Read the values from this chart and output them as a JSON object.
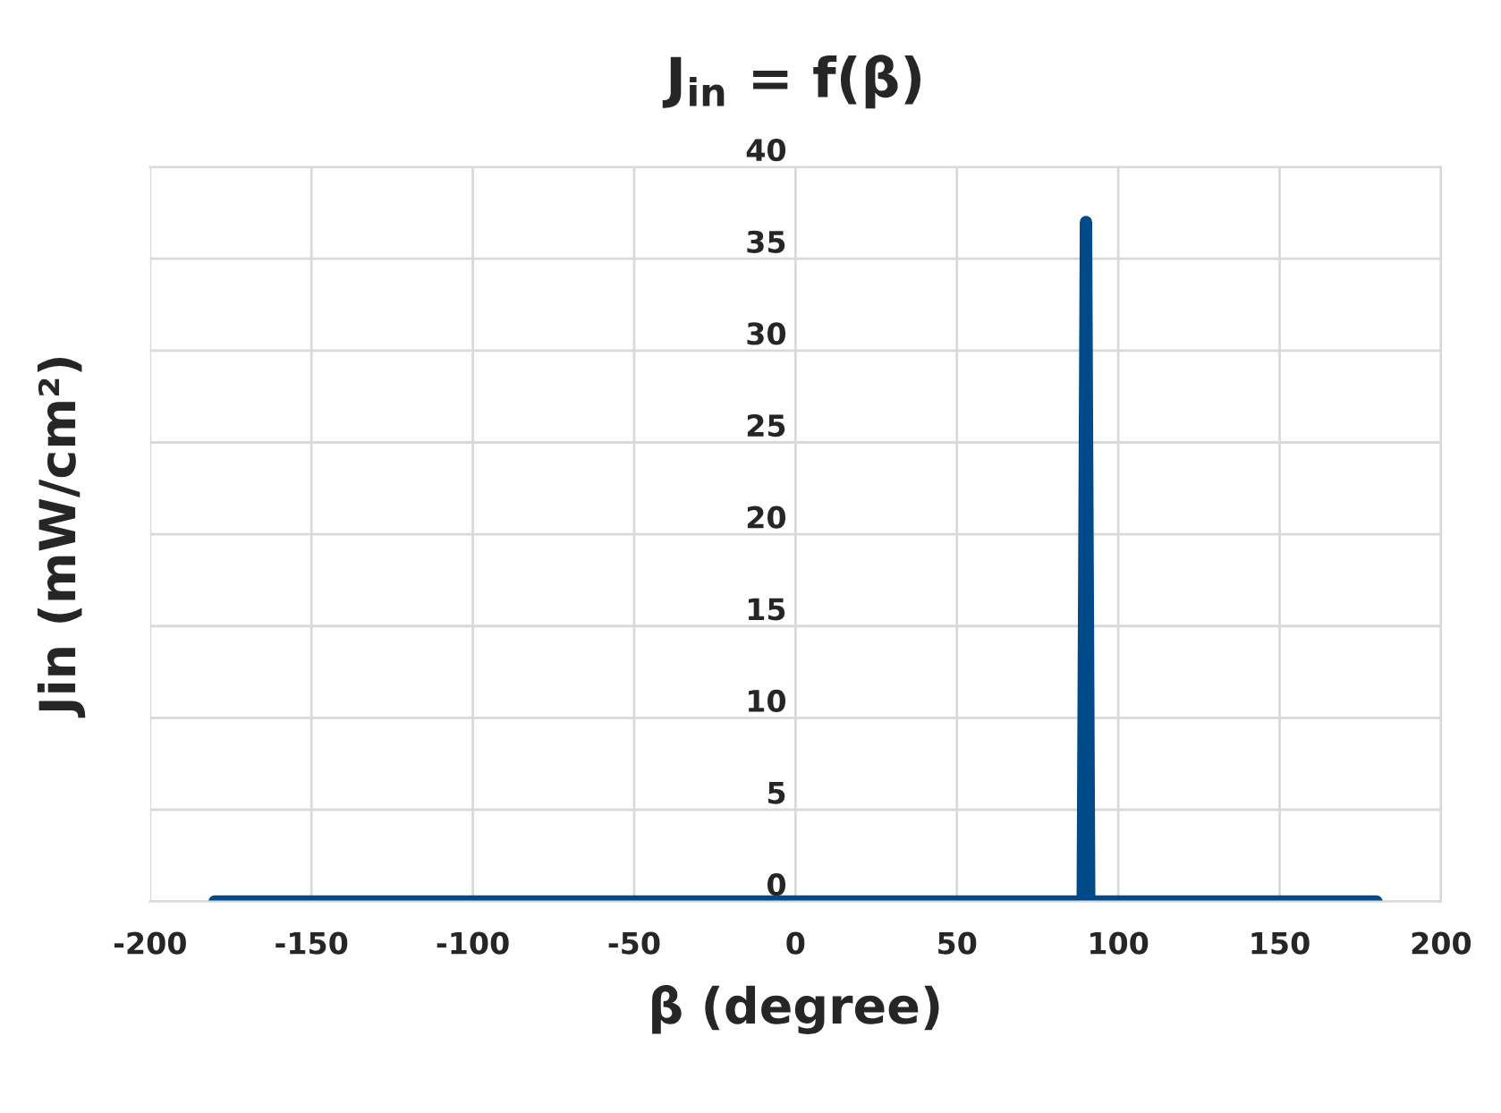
{
  "chart_data": {
    "type": "line",
    "title": "J$_{in}$ = f(β)",
    "xlabel": "β (degree)",
    "ylabel": "Jin (mW/cm²)",
    "x": [
      -180,
      89,
      90,
      91,
      180
    ],
    "series": [
      {
        "color": "#004a8a",
        "values": [
          0,
          0,
          37,
          0,
          0
        ]
      }
    ],
    "xlim": [
      -200,
      200
    ],
    "xticks": [
      -200,
      -150,
      -100,
      -50,
      0,
      50,
      100,
      150,
      200
    ],
    "ylim": [
      0,
      40
    ],
    "yticks": [
      0,
      5,
      10,
      15,
      20,
      25,
      30,
      35,
      40
    ],
    "grid": true,
    "legend": false,
    "marker": "none",
    "line_style": "solid"
  }
}
